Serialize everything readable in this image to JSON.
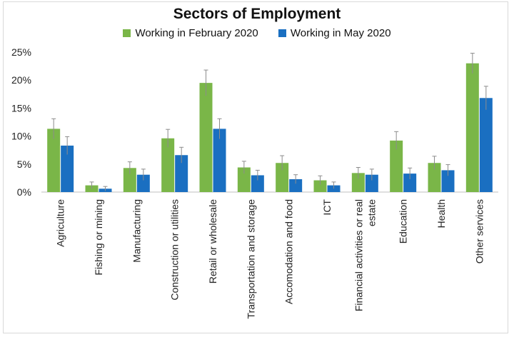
{
  "chart_data": {
    "type": "bar",
    "title": "Sectors of Employment",
    "xlabel": "",
    "ylabel": "",
    "ylim": [
      0,
      25
    ],
    "yticks": [
      "0%",
      "5%",
      "10%",
      "15%",
      "20%",
      "25%"
    ],
    "ytick_values": [
      0,
      5,
      10,
      15,
      20,
      25
    ],
    "grid": false,
    "legend_position": "top",
    "categories": [
      "Agriculture",
      "Fishing or mining",
      "Manufacturing",
      "Construction or utilities",
      "Retail or wholesale",
      "Transportation and storage",
      "Accomodation and food",
      "ICT",
      "Financial activities or real estate",
      "Education",
      "Health",
      "Other services"
    ],
    "category_lines": [
      [
        "Agriculture"
      ],
      [
        "Fishing or mining"
      ],
      [
        "Manufacturing"
      ],
      [
        "Construction or utilities"
      ],
      [
        "Retail or wholesale"
      ],
      [
        "Transportation and storage"
      ],
      [
        "Accomodation and food"
      ],
      [
        "ICT"
      ],
      [
        "Financial activities or real",
        "estate"
      ],
      [
        "Education"
      ],
      [
        "Health"
      ],
      [
        "Other services"
      ]
    ],
    "series": [
      {
        "name": "Working in February 2020",
        "color": "#7ab648",
        "values": [
          11.3,
          1.2,
          4.3,
          9.6,
          19.5,
          4.4,
          5.2,
          2.1,
          3.4,
          9.2,
          5.2,
          23.0
        ],
        "error": [
          1.8,
          0.6,
          1.1,
          1.6,
          2.3,
          1.1,
          1.3,
          0.8,
          1.0,
          1.6,
          1.2,
          1.8
        ]
      },
      {
        "name": "Working in May 2020",
        "color": "#1a6fc1",
        "values": [
          8.3,
          0.6,
          3.1,
          6.6,
          11.3,
          3.0,
          2.3,
          1.2,
          3.1,
          3.3,
          3.9,
          16.8
        ],
        "error": [
          1.6,
          0.4,
          1.0,
          1.4,
          1.8,
          0.9,
          0.8,
          0.6,
          1.0,
          1.0,
          1.0,
          2.1
        ]
      }
    ]
  }
}
